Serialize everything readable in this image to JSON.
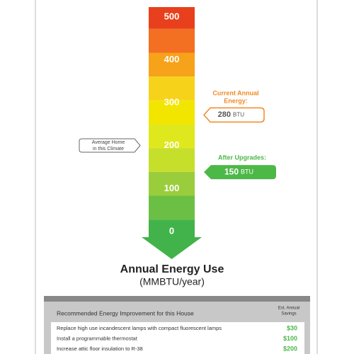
{
  "scale": {
    "ticks": [
      500,
      400,
      300,
      200,
      100,
      0
    ],
    "title": "Annual Energy Use",
    "subtitle": "(MMBTU/year)"
  },
  "markers": {
    "current": {
      "label": "Current Annual Energy:",
      "value": 280,
      "unit": "BTU"
    },
    "after": {
      "label": "After Upgrades:",
      "value": 150,
      "unit": "BTU"
    },
    "average": {
      "label_lines": [
        "Average Home",
        "in this Climate"
      ]
    }
  },
  "table": {
    "header": "Recommended Energy Improvement for this House",
    "savings_header": [
      "Est. Annual",
      "Savings"
    ],
    "rows": [
      [
        "Replace high use incandescent lamps with compact fluorescent lamps",
        "$30"
      ],
      [
        "Install a programmable thermostat",
        "$100"
      ],
      [
        "Increase attic floor insulation to R-38",
        "$200"
      ]
    ]
  }
}
